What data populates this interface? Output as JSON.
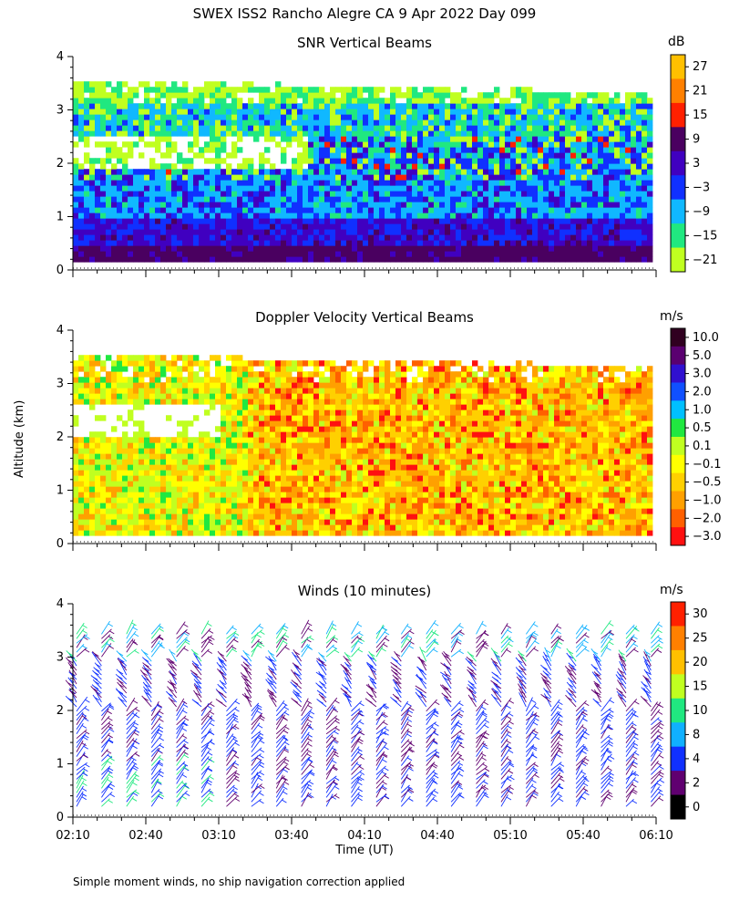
{
  "header": {
    "title": "SWEX ISS2 Rancho Alegre CA   9 Apr 2022 Day 099"
  },
  "y_axis_label": "Altitude (km)",
  "x_axis_label": "Time (UT)",
  "footnote": "Simple moment winds, no ship navigation correction applied",
  "y_ticks": [
    "0",
    "1",
    "2",
    "3",
    "4"
  ],
  "x_ticks": [
    "02:10",
    "02:40",
    "03:10",
    "03:40",
    "04:10",
    "04:40",
    "05:10",
    "05:40",
    "06:10"
  ],
  "panels": {
    "snr": {
      "title": "SNR Vertical Beams",
      "unit": "dB",
      "colorbar": {
        "labels": [
          "27",
          "21",
          "15",
          "9",
          "3",
          "−3",
          "−9",
          "−15",
          "−21"
        ],
        "colors": [
          "#ffc000",
          "#ff8000",
          "#ff2000",
          "#4a0060",
          "#4000c0",
          "#1030ff",
          "#10b8ff",
          "#20e880",
          "#c0ff20"
        ]
      }
    },
    "doppler": {
      "title": "Doppler Velocity Vertical Beams",
      "unit": "m/s",
      "colorbar": {
        "labels": [
          "10.0",
          "5.0",
          "3.0",
          "2.0",
          "1.0",
          "0.5",
          "0.1",
          "−0.1",
          "−0.5",
          "−1.0",
          "−2.0",
          "−3.0"
        ],
        "colors": [
          "#300020",
          "#5a0070",
          "#3010d0",
          "#1050ff",
          "#00c0ff",
          "#20e840",
          "#c0ff20",
          "#ffff00",
          "#ffd000",
          "#ffa000",
          "#ff6000",
          "#ff1010"
        ]
      }
    },
    "winds": {
      "title": "Winds (10 minutes)",
      "unit": "m/s",
      "colorbar": {
        "labels": [
          "30",
          "25",
          "20",
          "15",
          "10",
          "8",
          "4",
          "2",
          "0"
        ],
        "colors": [
          "#ff2000",
          "#ff8000",
          "#ffc000",
          "#c0ff20",
          "#20e880",
          "#10b0ff",
          "#1030ff",
          "#600070",
          "#000000"
        ]
      }
    }
  },
  "chart_data": [
    {
      "type": "heatmap",
      "title": "SNR Vertical Beams",
      "xlabel": "",
      "ylabel": "Altitude (km)",
      "xlim": [
        "02:10",
        "06:10"
      ],
      "ylim": [
        0,
        4
      ],
      "data_top_km": 3.5,
      "colorscale_unit": "dB",
      "colorscale_ticks": [
        27,
        21,
        15,
        9,
        3,
        -3,
        -9,
        -15,
        -21
      ]
    },
    {
      "type": "heatmap",
      "title": "Doppler Velocity Vertical Beams",
      "xlabel": "",
      "ylabel": "Altitude (km)",
      "xlim": [
        "02:10",
        "06:10"
      ],
      "ylim": [
        0,
        4
      ],
      "data_top_km": 3.5,
      "colorscale_unit": "m/s",
      "colorscale_ticks": [
        10.0,
        5.0,
        3.0,
        2.0,
        1.0,
        0.5,
        0.1,
        -0.1,
        -0.5,
        -1.0,
        -2.0,
        -3.0
      ]
    },
    {
      "type": "scatter",
      "subtype": "wind-barbs",
      "title": "Winds (10 minutes)",
      "xlabel": "Time (UT)",
      "ylabel": "Altitude (km)",
      "xlim": [
        "02:10",
        "06:10"
      ],
      "ylim": [
        0,
        4
      ],
      "interval_minutes": 10,
      "profile_times": [
        "02:10",
        "02:20",
        "02:30",
        "02:40",
        "02:50",
        "03:00",
        "03:10",
        "03:20",
        "03:30",
        "03:40",
        "03:50",
        "04:00",
        "04:10",
        "04:20",
        "04:30",
        "04:40",
        "04:50",
        "05:00",
        "05:10",
        "05:20",
        "05:30",
        "05:40",
        "05:50",
        "06:00"
      ],
      "colorscale_unit": "m/s",
      "colorscale_ticks": [
        30,
        25,
        20,
        15,
        10,
        8,
        4,
        2,
        0
      ]
    }
  ]
}
